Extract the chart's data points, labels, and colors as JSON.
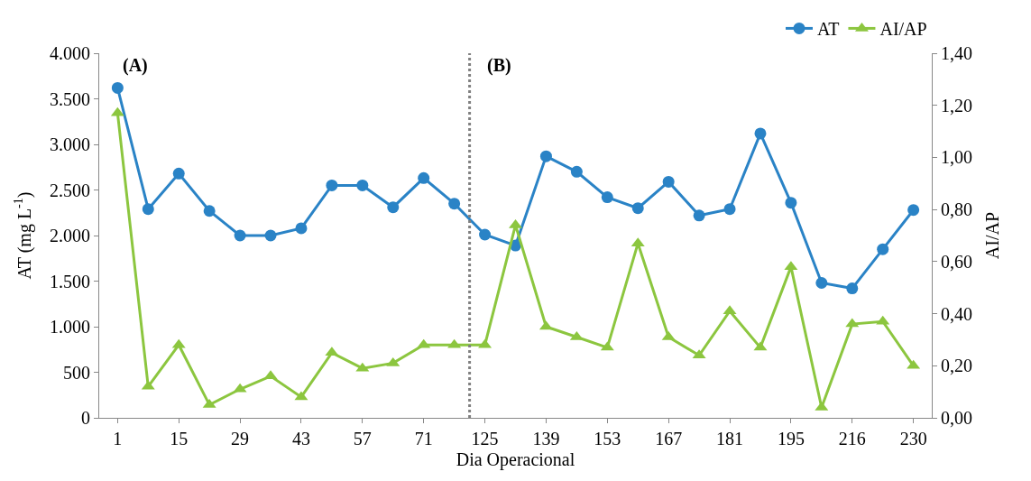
{
  "chart_data": {
    "type": "line",
    "xlabel": "Dia Operacional",
    "ylabel": "AT (mg L$^{-1}$)",
    "y2label": "AI/AP",
    "categories": [
      "1",
      null,
      "15",
      null,
      "29",
      null,
      "43",
      null,
      "57",
      null,
      "71",
      null,
      "125",
      null,
      "139",
      null,
      "153",
      null,
      "167",
      null,
      "181",
      null,
      "195",
      null,
      "216",
      null,
      "230"
    ],
    "series": [
      {
        "name": "AT",
        "color": "#2a83c6",
        "marker": "circle",
        "values": [
          3620,
          2290,
          2680,
          2270,
          2000,
          2000,
          2080,
          2550,
          2550,
          2310,
          2630,
          2350,
          2010,
          1890,
          2870,
          2700,
          2420,
          2300,
          2590,
          2220,
          2290,
          3120,
          2360,
          1480,
          1420,
          1850,
          2280
        ]
      },
      {
        "name": "AI/AP",
        "color": "#8cc63f",
        "marker": "triangle",
        "axis": "y2",
        "values": [
          1.17,
          0.12,
          0.28,
          0.05,
          0.11,
          0.16,
          0.08,
          0.25,
          0.19,
          0.21,
          0.28,
          0.28,
          0.28,
          0.74,
          0.35,
          0.31,
          0.27,
          0.67,
          0.31,
          0.24,
          0.41,
          0.27,
          0.58,
          0.04,
          0.36,
          0.37,
          0.2
        ]
      }
    ],
    "ylim": [
      0,
      4000
    ],
    "yticks": [
      {
        "value": 0,
        "label": "0"
      },
      {
        "value": 500,
        "label": "500"
      },
      {
        "value": 1000,
        "label": "1.000"
      },
      {
        "value": 1500,
        "label": "1.500"
      },
      {
        "value": 2000,
        "label": "2.000"
      },
      {
        "value": 2500,
        "label": "2.500"
      },
      {
        "value": 3000,
        "label": "3.000"
      },
      {
        "value": 3500,
        "label": "3.500"
      },
      {
        "value": 4000,
        "label": "4.000"
      }
    ],
    "y2lim": [
      0,
      1.4
    ],
    "y2ticks": [
      {
        "value": 0,
        "label": "0,00"
      },
      {
        "value": 0.2,
        "label": "0,20"
      },
      {
        "value": 0.4,
        "label": "0,40"
      },
      {
        "value": 0.6,
        "label": "0,60"
      },
      {
        "value": 0.8,
        "label": "0,80"
      },
      {
        "value": 1.0,
        "label": "1,00"
      },
      {
        "value": 1.2,
        "label": "1,20"
      },
      {
        "value": 1.4,
        "label": "1,40"
      }
    ],
    "annotations": [
      "(A)",
      "(B)"
    ],
    "legend": "top right"
  }
}
